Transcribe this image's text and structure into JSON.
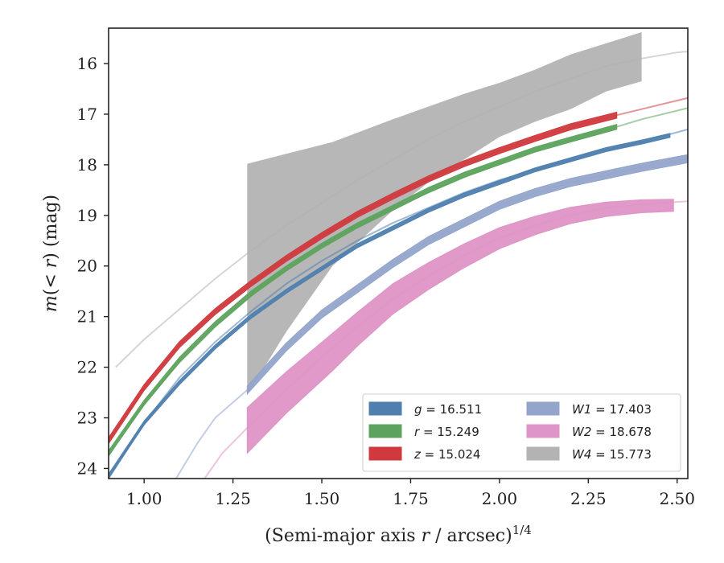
{
  "chart_data": {
    "type": "line",
    "xlabel": "(Semi-major axis r / arcsec)^1/4",
    "xlabel_parts": {
      "prefix": "(Semi-major axis ",
      "var": "r",
      "mid": " / arcsec)",
      "sup": "1/4"
    },
    "ylabel": "m(< r) (mag)",
    "ylabel_parts": {
      "var": "m",
      "rest": "(< ",
      "var2": "r",
      "end": ") (mag)"
    },
    "xlim": [
      0.9,
      2.53
    ],
    "ylim": [
      24.2,
      15.3
    ],
    "y_inverted": true,
    "xticks": [
      1.0,
      1.25,
      1.5,
      1.75,
      2.0,
      2.25,
      2.5
    ],
    "xtick_labels": [
      "1.00",
      "1.25",
      "1.50",
      "1.75",
      "2.00",
      "2.25",
      "2.50"
    ],
    "yticks": [
      16,
      17,
      18,
      19,
      20,
      21,
      22,
      23,
      24
    ],
    "ytick_labels": [
      "16",
      "17",
      "18",
      "19",
      "20",
      "21",
      "22",
      "23",
      "24"
    ],
    "grid": false,
    "legend_position": "lower-right",
    "series": [
      {
        "name": "g = 16.511",
        "band": "g",
        "mag": "16.511",
        "color": "#4f7faf",
        "extrap": [
          [
            0.9,
            24.2
          ],
          [
            1.0,
            23.1
          ],
          [
            1.1,
            22.2
          ],
          [
            1.2,
            21.5
          ],
          [
            1.3,
            20.9
          ],
          [
            1.4,
            20.35
          ],
          [
            1.5,
            19.9
          ],
          [
            1.6,
            19.5
          ],
          [
            1.7,
            19.15
          ],
          [
            1.8,
            18.85
          ],
          [
            1.9,
            18.55
          ],
          [
            2.0,
            18.3
          ],
          [
            2.1,
            18.1
          ],
          [
            2.2,
            17.9
          ],
          [
            2.3,
            17.7
          ],
          [
            2.4,
            17.55
          ],
          [
            2.53,
            17.3
          ]
        ],
        "measured": [
          [
            0.9,
            24.15
          ],
          [
            1.0,
            23.1
          ],
          [
            1.1,
            22.3
          ],
          [
            1.2,
            21.6
          ],
          [
            1.3,
            21.0
          ],
          [
            1.4,
            20.5
          ],
          [
            1.5,
            20.05
          ],
          [
            1.6,
            19.6
          ],
          [
            1.7,
            19.25
          ],
          [
            1.8,
            18.9
          ],
          [
            1.9,
            18.6
          ],
          [
            2.0,
            18.35
          ],
          [
            2.1,
            18.1
          ],
          [
            2.2,
            17.9
          ],
          [
            2.3,
            17.7
          ],
          [
            2.4,
            17.55
          ],
          [
            2.48,
            17.42
          ]
        ],
        "halfwidth": 0.04
      },
      {
        "name": "r = 15.249",
        "band": "r",
        "mag": "15.249",
        "color": "#5da35d",
        "extrap": [
          [
            0.9,
            23.75
          ],
          [
            1.0,
            22.7
          ],
          [
            1.1,
            21.9
          ],
          [
            1.2,
            21.2
          ],
          [
            1.3,
            20.6
          ],
          [
            1.4,
            20.05
          ],
          [
            1.5,
            19.6
          ],
          [
            1.6,
            19.2
          ],
          [
            1.7,
            18.85
          ],
          [
            1.8,
            18.55
          ],
          [
            1.9,
            18.25
          ],
          [
            2.0,
            17.95
          ],
          [
            2.1,
            17.7
          ],
          [
            2.2,
            17.5
          ],
          [
            2.33,
            17.25
          ],
          [
            2.4,
            17.1
          ],
          [
            2.53,
            16.88
          ]
        ],
        "measured": [
          [
            0.9,
            23.7
          ],
          [
            1.0,
            22.7
          ],
          [
            1.1,
            21.85
          ],
          [
            1.2,
            21.15
          ],
          [
            1.3,
            20.55
          ],
          [
            1.4,
            20.05
          ],
          [
            1.5,
            19.6
          ],
          [
            1.6,
            19.2
          ],
          [
            1.7,
            18.85
          ],
          [
            1.8,
            18.5
          ],
          [
            1.9,
            18.2
          ],
          [
            2.0,
            17.95
          ],
          [
            2.1,
            17.7
          ],
          [
            2.2,
            17.5
          ],
          [
            2.33,
            17.25
          ]
        ],
        "halfwidth": 0.05
      },
      {
        "name": "z = 15.024",
        "band": "z",
        "mag": "15.024",
        "color": "#d03a3e",
        "extrap": [
          [
            0.9,
            23.45
          ],
          [
            1.0,
            22.4
          ],
          [
            1.1,
            21.55
          ],
          [
            1.2,
            20.9
          ],
          [
            1.3,
            20.35
          ],
          [
            1.4,
            19.85
          ],
          [
            1.5,
            19.4
          ],
          [
            1.6,
            18.98
          ],
          [
            1.7,
            18.62
          ],
          [
            1.8,
            18.28
          ],
          [
            1.9,
            17.98
          ],
          [
            2.0,
            17.72
          ],
          [
            2.1,
            17.48
          ],
          [
            2.2,
            17.25
          ],
          [
            2.33,
            17.02
          ],
          [
            2.4,
            16.9
          ],
          [
            2.53,
            16.68
          ]
        ],
        "measured": [
          [
            0.9,
            23.45
          ],
          [
            1.0,
            22.4
          ],
          [
            1.1,
            21.55
          ],
          [
            1.2,
            20.9
          ],
          [
            1.3,
            20.35
          ],
          [
            1.4,
            19.85
          ],
          [
            1.5,
            19.4
          ],
          [
            1.6,
            18.98
          ],
          [
            1.7,
            18.62
          ],
          [
            1.8,
            18.28
          ],
          [
            1.9,
            17.98
          ],
          [
            2.0,
            17.72
          ],
          [
            2.1,
            17.48
          ],
          [
            2.2,
            17.25
          ],
          [
            2.33,
            17.02
          ]
        ],
        "halfwidth": 0.06
      },
      {
        "name": "W1 = 17.403",
        "band": "W1",
        "mag": "17.403",
        "color": "#94a5cb",
        "extrap": [
          [
            1.09,
            24.2
          ],
          [
            1.15,
            23.5
          ],
          [
            1.2,
            23.0
          ],
          [
            1.29,
            22.45
          ],
          [
            1.4,
            21.6
          ],
          [
            1.5,
            21.0
          ],
          [
            1.6,
            20.45
          ],
          [
            1.7,
            19.95
          ],
          [
            1.8,
            19.5
          ],
          [
            1.9,
            19.15
          ],
          [
            2.0,
            18.8
          ],
          [
            2.1,
            18.55
          ],
          [
            2.2,
            18.35
          ],
          [
            2.3,
            18.2
          ],
          [
            2.4,
            18.05
          ],
          [
            2.53,
            17.88
          ]
        ],
        "measured": [
          [
            1.29,
            22.45
          ],
          [
            1.4,
            21.6
          ],
          [
            1.5,
            20.95
          ],
          [
            1.6,
            20.45
          ],
          [
            1.7,
            19.95
          ],
          [
            1.8,
            19.5
          ],
          [
            1.9,
            19.15
          ],
          [
            2.0,
            18.8
          ],
          [
            2.1,
            18.55
          ],
          [
            2.2,
            18.35
          ],
          [
            2.3,
            18.2
          ],
          [
            2.4,
            18.05
          ],
          [
            2.53,
            17.88
          ]
        ],
        "halfwidth": 0.08
      },
      {
        "name": "W2 = 18.678",
        "band": "W2",
        "mag": "18.678",
        "color": "#de94c6",
        "extrap": [
          [
            1.17,
            24.2
          ],
          [
            1.22,
            23.7
          ],
          [
            1.29,
            23.2
          ],
          [
            1.4,
            22.45
          ],
          [
            1.5,
            21.8
          ],
          [
            1.6,
            21.2
          ],
          [
            1.7,
            20.65
          ],
          [
            1.8,
            20.2
          ],
          [
            1.9,
            19.8
          ],
          [
            2.0,
            19.45
          ],
          [
            2.1,
            19.2
          ],
          [
            2.2,
            19.0
          ],
          [
            2.3,
            18.85
          ],
          [
            2.4,
            18.78
          ],
          [
            2.53,
            18.72
          ]
        ],
        "measured": [
          [
            1.29,
            23.25
          ],
          [
            1.4,
            22.5
          ],
          [
            1.53,
            21.7
          ],
          [
            1.6,
            21.25
          ],
          [
            1.7,
            20.65
          ],
          [
            1.8,
            20.2
          ],
          [
            1.9,
            19.8
          ],
          [
            2.0,
            19.45
          ],
          [
            2.1,
            19.2
          ],
          [
            2.2,
            19.0
          ],
          [
            2.3,
            18.88
          ],
          [
            2.4,
            18.82
          ],
          [
            2.49,
            18.8
          ]
        ],
        "halfwidth": 0.12,
        "halfwidth_start": 0.45
      },
      {
        "name": "W4 = 15.773",
        "band": "W4",
        "mag": "15.773",
        "color": "#b3b3b3",
        "extrap": [
          [
            0.92,
            22.0
          ],
          [
            1.0,
            21.45
          ],
          [
            1.1,
            20.85
          ],
          [
            1.2,
            20.25
          ],
          [
            1.3,
            19.7
          ],
          [
            1.4,
            19.2
          ],
          [
            1.5,
            18.75
          ],
          [
            1.6,
            18.3
          ],
          [
            1.7,
            17.9
          ],
          [
            1.8,
            17.5
          ],
          [
            1.9,
            17.15
          ],
          [
            2.0,
            16.85
          ],
          [
            2.1,
            16.55
          ],
          [
            2.2,
            16.3
          ],
          [
            2.3,
            16.05
          ],
          [
            2.4,
            15.9
          ],
          [
            2.5,
            15.78
          ],
          [
            2.53,
            15.76
          ]
        ]
      }
    ],
    "w4_band": {
      "color": "#b3b3b3",
      "upper": [
        [
          1.29,
          17.98
        ],
        [
          1.53,
          17.55
        ],
        [
          1.7,
          17.1
        ],
        [
          1.9,
          16.6
        ],
        [
          2.0,
          16.38
        ],
        [
          2.1,
          16.12
        ],
        [
          2.2,
          15.82
        ],
        [
          2.3,
          15.6
        ],
        [
          2.4,
          15.38
        ]
      ],
      "lower": [
        [
          1.29,
          22.55
        ],
        [
          1.4,
          21.3
        ],
        [
          1.53,
          20.0
        ],
        [
          1.7,
          18.9
        ],
        [
          1.8,
          18.35
        ],
        [
          1.9,
          17.9
        ],
        [
          2.0,
          17.45
        ],
        [
          2.1,
          17.15
        ],
        [
          2.2,
          16.9
        ],
        [
          2.3,
          16.55
        ],
        [
          2.4,
          16.35
        ]
      ]
    }
  }
}
